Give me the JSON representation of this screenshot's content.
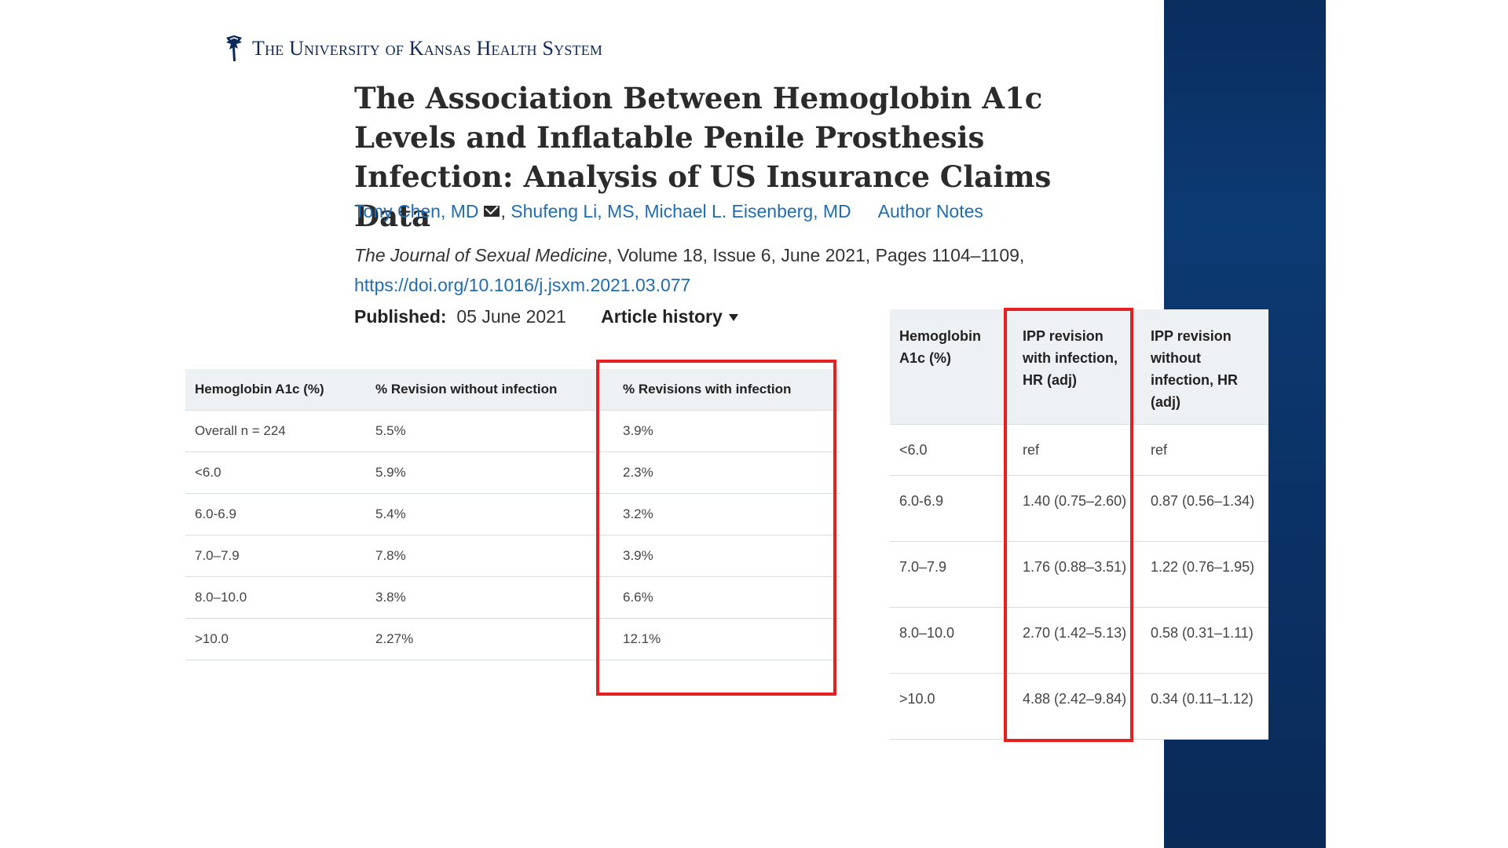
{
  "header": {
    "logo_icon": "jayhawk-logo-icon",
    "institution": "The University of Kansas Health System"
  },
  "article": {
    "title": "The Association Between Hemoglobin A1c Levels and Inflatable Penile Prosthesis Infection: Analysis of US Insurance Claims Data",
    "authors": {
      "first": "Tony Chen, MD",
      "rest": "Shufeng Li, MS, Michael L. Eisenberg, MD",
      "notes": "Author Notes"
    },
    "journal": "The Journal of Sexual Medicine",
    "citation_detail": ", Volume 18, Issue 6, June 2021, Pages 1104–1109,",
    "doi": "https://doi.org/10.1016/j.jsxm.2021.03.077",
    "published_label": "Published:",
    "published_date": "05 June 2021",
    "history_label": "Article history"
  },
  "table1": {
    "headers": [
      "Hemoglobin A1c (%)",
      "% Revision without infection",
      "% Revisions with infection"
    ],
    "rows": [
      [
        "Overall n = 224",
        "5.5%",
        "3.9%"
      ],
      [
        "<6.0",
        "5.9%",
        "2.3%"
      ],
      [
        "6.0-6.9",
        "5.4%",
        "3.2%"
      ],
      [
        "7.0–7.9",
        "7.8%",
        "3.9%"
      ],
      [
        "8.0–10.0",
        "3.8%",
        "6.6%"
      ],
      [
        ">10.0",
        "2.27%",
        "12.1%"
      ]
    ]
  },
  "table2": {
    "headers": [
      "Hemoglobin A1c (%)",
      "IPP revision with infection, HR (adj)",
      "IPP revision without infection, HR (adj)"
    ],
    "rows": [
      [
        "<6.0",
        "ref",
        "ref"
      ],
      [
        "6.0-6.9",
        "1.40 (0.75–2.60)",
        "0.87 (0.56–1.34)"
      ],
      [
        "7.0–7.9",
        "1.76 (0.88–3.51)",
        "1.22 (0.76–1.95)"
      ],
      [
        "8.0–10.0",
        "2.70 (1.42–5.13)",
        "0.58 (0.31–1.11)"
      ],
      [
        ">10.0",
        "4.88 (2.42–9.84)",
        "0.34 (0.11–1.12)"
      ]
    ]
  },
  "colors": {
    "highlight": "#e62020",
    "link": "#1f6cb3",
    "band": "#0c3a73"
  }
}
